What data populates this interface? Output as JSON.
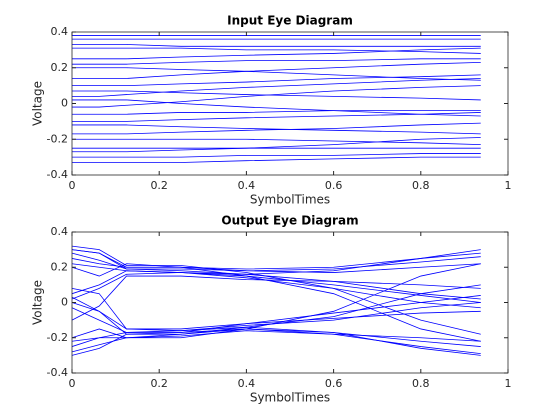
{
  "chart_data": [
    {
      "type": "line",
      "title": "Input Eye Diagram",
      "xlabel": "SymbolTimes",
      "ylabel": "Voltage",
      "color": "#0000ff",
      "xlim": [
        0,
        1
      ],
      "xticks": [
        0,
        0.2,
        0.4,
        0.6,
        0.8,
        1
      ],
      "ylim": [
        -0.4,
        0.4
      ],
      "yticks": [
        -0.4,
        -0.2,
        0,
        0.2,
        0.4
      ],
      "x": [
        0,
        0.0625,
        0.125,
        0.25,
        0.4,
        0.6,
        0.8,
        0.9375
      ],
      "series": [
        {
          "values": [
            0.38,
            0.38,
            0.38,
            0.38,
            0.38,
            0.38,
            0.38,
            0.38
          ]
        },
        {
          "values": [
            0.36,
            0.36,
            0.36,
            0.36,
            0.36,
            0.36,
            0.36,
            0.36
          ]
        },
        {
          "values": [
            0.33,
            0.33,
            0.33,
            0.32,
            0.32,
            0.32,
            0.32,
            0.32
          ]
        },
        {
          "values": [
            0.31,
            0.31,
            0.31,
            0.31,
            0.3,
            0.3,
            0.29,
            0.28
          ]
        },
        {
          "values": [
            0.25,
            0.25,
            0.25,
            0.26,
            0.27,
            0.28,
            0.3,
            0.31
          ]
        },
        {
          "values": [
            0.22,
            0.22,
            0.22,
            0.23,
            0.24,
            0.24,
            0.25,
            0.25
          ]
        },
        {
          "values": [
            0.2,
            0.2,
            0.2,
            0.19,
            0.18,
            0.16,
            0.14,
            0.13
          ]
        },
        {
          "values": [
            0.14,
            0.14,
            0.14,
            0.16,
            0.18,
            0.2,
            0.22,
            0.23
          ]
        },
        {
          "values": [
            0.1,
            0.1,
            0.1,
            0.11,
            0.12,
            0.14,
            0.15,
            0.16
          ]
        },
        {
          "values": [
            0.07,
            0.07,
            0.07,
            0.06,
            0.05,
            0.04,
            0.03,
            0.02
          ]
        },
        {
          "values": [
            0.04,
            0.04,
            0.05,
            0.07,
            0.09,
            0.11,
            0.13,
            0.14
          ]
        },
        {
          "values": [
            0.02,
            0.02,
            0.02,
            0,
            -0.02,
            -0.04,
            -0.06,
            -0.07
          ]
        },
        {
          "values": [
            -0.02,
            -0.02,
            -0.01,
            0.01,
            0.04,
            0.07,
            0.09,
            0.1
          ]
        },
        {
          "values": [
            -0.06,
            -0.06,
            -0.06,
            -0.05,
            -0.05,
            -0.04,
            -0.04,
            -0.04
          ]
        },
        {
          "values": [
            -0.1,
            -0.1,
            -0.1,
            -0.09,
            -0.08,
            -0.07,
            -0.06,
            -0.05
          ]
        },
        {
          "values": [
            -0.12,
            -0.12,
            -0.12,
            -0.13,
            -0.14,
            -0.15,
            -0.16,
            -0.17
          ]
        },
        {
          "values": [
            -0.17,
            -0.17,
            -0.17,
            -0.16,
            -0.15,
            -0.14,
            -0.12,
            -0.11
          ]
        },
        {
          "values": [
            -0.2,
            -0.2,
            -0.2,
            -0.2,
            -0.2,
            -0.21,
            -0.22,
            -0.23
          ]
        },
        {
          "values": [
            -0.25,
            -0.25,
            -0.25,
            -0.25,
            -0.25,
            -0.25,
            -0.25,
            -0.25
          ]
        },
        {
          "values": [
            -0.27,
            -0.27,
            -0.27,
            -0.26,
            -0.25,
            -0.23,
            -0.2,
            -0.19
          ]
        },
        {
          "values": [
            -0.3,
            -0.3,
            -0.3,
            -0.3,
            -0.29,
            -0.29,
            -0.28,
            -0.28
          ]
        },
        {
          "values": [
            -0.33,
            -0.33,
            -0.33,
            -0.33,
            -0.32,
            -0.31,
            -0.3,
            -0.3
          ]
        }
      ]
    },
    {
      "type": "line",
      "title": "Output Eye Diagram",
      "xlabel": "SymbolTimes",
      "ylabel": "Voltage",
      "color": "#0000ff",
      "xlim": [
        0,
        1
      ],
      "xticks": [
        0,
        0.2,
        0.4,
        0.6,
        0.8,
        1
      ],
      "ylim": [
        -0.4,
        0.4
      ],
      "yticks": [
        -0.4,
        -0.2,
        0,
        0.2,
        0.4
      ],
      "x": [
        0,
        0.0625,
        0.125,
        0.25,
        0.4,
        0.6,
        0.8,
        0.9375
      ],
      "series": [
        {
          "values": [
            0.3,
            0.28,
            0.2,
            0.2,
            0.19,
            0.2,
            0.25,
            0.28
          ]
        },
        {
          "values": [
            0.28,
            0.24,
            0.19,
            0.19,
            0.18,
            0.19,
            0.23,
            0.26
          ]
        },
        {
          "values": [
            0.25,
            0.22,
            0.2,
            0.2,
            0.18,
            0.17,
            0.2,
            0.22
          ]
        },
        {
          "values": [
            0.22,
            0.2,
            0.18,
            0.17,
            0.16,
            0.18,
            0.25,
            0.3
          ]
        },
        {
          "values": [
            0.3,
            0.28,
            0.19,
            0.18,
            0.16,
            0.12,
            0.05,
            0.02
          ]
        },
        {
          "values": [
            0.05,
            0.1,
            0.18,
            0.17,
            0.15,
            0.1,
            0.04,
            0
          ]
        },
        {
          "values": [
            0.02,
            0.08,
            0.16,
            0.17,
            0.14,
            0.08,
            0,
            -0.03
          ]
        },
        {
          "values": [
            0,
            -0.05,
            -0.15,
            -0.16,
            -0.13,
            -0.1,
            -0.03,
            0
          ]
        },
        {
          "values": [
            -0.03,
            -0.1,
            -0.17,
            -0.17,
            -0.12,
            -0.06,
            0,
            0.04
          ]
        },
        {
          "values": [
            0.03,
            -0.05,
            -0.18,
            -0.18,
            -0.14,
            -0.08,
            0.05,
            0.1
          ]
        },
        {
          "values": [
            -0.3,
            -0.26,
            -0.18,
            -0.17,
            -0.15,
            -0.18,
            -0.25,
            -0.29
          ]
        },
        {
          "values": [
            -0.28,
            -0.24,
            -0.2,
            -0.18,
            -0.15,
            -0.17,
            -0.22,
            -0.25
          ]
        },
        {
          "values": [
            -0.22,
            -0.2,
            -0.17,
            -0.16,
            -0.14,
            -0.17,
            -0.26,
            -0.3
          ]
        },
        {
          "values": [
            -0.25,
            -0.2,
            -0.2,
            -0.19,
            -0.16,
            -0.18,
            -0.2,
            -0.22
          ]
        },
        {
          "values": [
            -0.2,
            -0.15,
            -0.2,
            -0.2,
            -0.15,
            -0.05,
            0.15,
            0.22
          ]
        },
        {
          "values": [
            0.2,
            0.15,
            0.22,
            0.2,
            0.15,
            0.05,
            -0.15,
            -0.22
          ]
        },
        {
          "values": [
            0.32,
            0.3,
            0.21,
            0.21,
            0.17,
            0.08,
            -0.1,
            -0.18
          ]
        },
        {
          "values": [
            -0.1,
            -0.02,
            0.15,
            0.15,
            0.13,
            0.12,
            0.1,
            0.08
          ]
        },
        {
          "values": [
            0.08,
            0.05,
            -0.15,
            -0.15,
            -0.12,
            -0.09,
            -0.06,
            -0.05
          ]
        }
      ]
    }
  ]
}
